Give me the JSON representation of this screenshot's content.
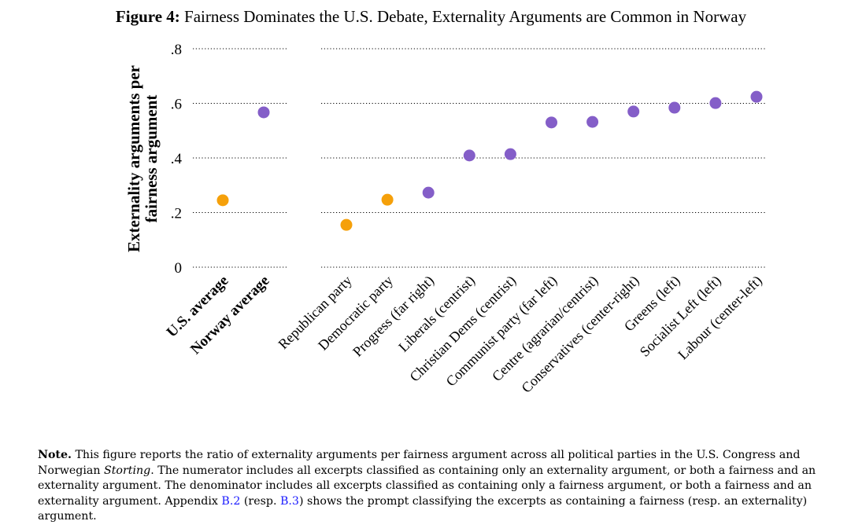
{
  "figure": {
    "label": "Figure 4:",
    "title": "Fairness Dominates the U.S. Debate, Externality Arguments are Common in Norway"
  },
  "chart_data": {
    "type": "scatter",
    "title": "Fairness Dominates the U.S. Debate, Externality Arguments are Common in Norway",
    "xlabel": "",
    "ylabel": [
      "Externality arguments per",
      "fairness argument"
    ],
    "ylim": [
      0,
      0.8
    ],
    "yticks": [
      0,
      0.2,
      0.4,
      0.6,
      0.8
    ],
    "ytick_labels": [
      "0",
      ".2",
      ".4",
      ".6",
      ".8"
    ],
    "grid": "horizontal dotted",
    "groups": [
      {
        "name": "averages",
        "points": [
          {
            "label": "U.S. average",
            "value": 0.245,
            "country": "US",
            "bold": true
          },
          {
            "label": "Norway average",
            "value": 0.567,
            "country": "Norway",
            "bold": true
          }
        ]
      },
      {
        "name": "parties",
        "points": [
          {
            "label": "Republican party",
            "value": 0.155,
            "country": "US"
          },
          {
            "label": "Democratic party",
            "value": 0.247,
            "country": "US"
          },
          {
            "label": "Progress (far right)",
            "value": 0.273,
            "country": "Norway"
          },
          {
            "label": "Liberals (centrist)",
            "value": 0.409,
            "country": "Norway"
          },
          {
            "label": "Christian Dems (centrist)",
            "value": 0.414,
            "country": "Norway"
          },
          {
            "label": "Communist party (far left)",
            "value": 0.53,
            "country": "Norway"
          },
          {
            "label": "Centre (agrarian/centrist)",
            "value": 0.532,
            "country": "Norway"
          },
          {
            "label": "Conservatives (center-right)",
            "value": 0.57,
            "country": "Norway"
          },
          {
            "label": "Greens (left)",
            "value": 0.584,
            "country": "Norway"
          },
          {
            "label": "Socialist Left (left)",
            "value": 0.601,
            "country": "Norway"
          },
          {
            "label": "Labour (center-left)",
            "value": 0.624,
            "country": "Norway"
          }
        ]
      }
    ],
    "colors": {
      "US": "#F5A00A",
      "Norway": "#845EC8"
    },
    "legend": "none"
  },
  "note": {
    "lead": "Note.",
    "part1": " This figure reports the ratio of externality arguments per fairness argument across all political parties in the U.S. Congress and Norwegian ",
    "italic": "Storting",
    "part2": ". The numerator includes all excerpts classified as containing only an externality argument, or both a fairness and an externality argument. The denominator includes all excerpts classified as containing only a fairness argument, or both a fairness and an externality argument. Appendix ",
    "ref1": "B.2",
    "part3": " (resp. ",
    "ref2": "B.3",
    "part4": ") shows the prompt classifying the excerpts as containing a fairness (resp. an externality) argument."
  }
}
